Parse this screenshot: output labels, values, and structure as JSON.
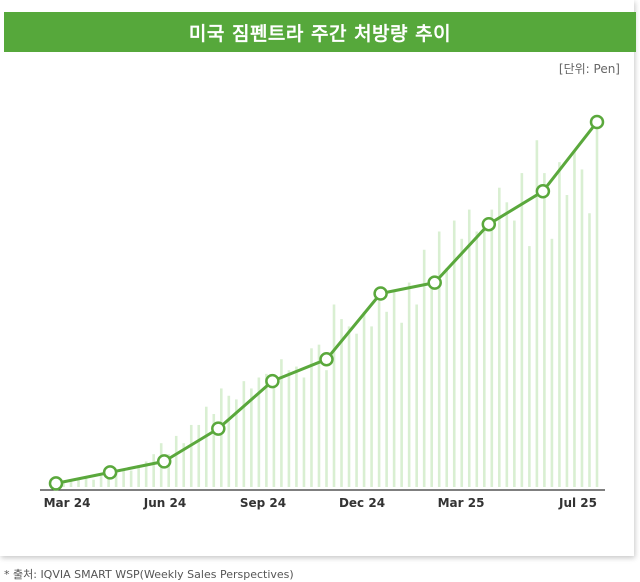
{
  "header": {
    "title": "미국 짐펜트라 주간 처방량 추이"
  },
  "unit_label": "[단위: Pen]",
  "source_note": "* 출처: IQVIA SMART WSP(Weekly Sales Perspectives)",
  "colors": {
    "header_bg": "#56a83b",
    "line": "#5aa83c",
    "bar": "#d9efd2",
    "marker_fill": "#ffffff",
    "axis": "#333333"
  },
  "chart_data": {
    "type": "bar+line",
    "title": "미국 짐펜트라 주간 처방량 추이",
    "ylabel": "",
    "xlabel": "",
    "unit": "Pen",
    "x_tick_labels": [
      "Mar 24",
      "Jun 24",
      "Sep 24",
      "Dec 24",
      "Mar 25",
      "Jul 25"
    ],
    "ylim": [
      0,
      100
    ],
    "series": [
      {
        "type": "bar",
        "values": [
          0.5,
          1,
          1.5,
          2,
          2.5,
          2,
          3,
          3.5,
          4,
          5,
          4.5,
          6,
          7,
          9,
          12,
          9,
          14,
          12,
          17,
          17,
          22,
          20,
          27,
          25,
          24,
          29,
          27,
          30,
          31,
          28,
          35,
          32,
          33,
          30,
          38,
          39,
          32,
          50,
          46,
          44,
          42,
          48,
          44,
          51,
          48,
          54,
          45,
          56,
          50,
          65,
          55,
          70,
          60,
          73,
          68,
          76,
          70,
          71,
          76,
          82,
          78,
          73,
          86,
          66,
          95,
          86,
          68,
          89,
          80,
          92,
          87,
          75,
          99
        ]
      },
      {
        "type": "line",
        "markers": true,
        "values": [
          1,
          4,
          7,
          16,
          29,
          35,
          53,
          56,
          72,
          81,
          100
        ]
      }
    ]
  }
}
